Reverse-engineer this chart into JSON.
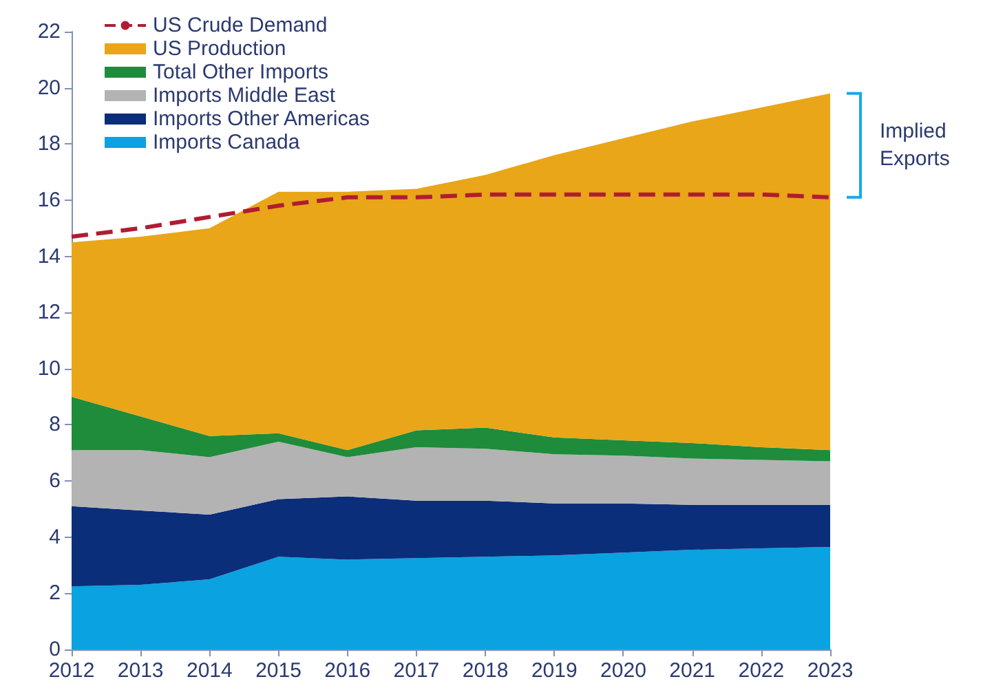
{
  "chart_data": {
    "type": "area",
    "stacked": true,
    "categories": [
      "2012",
      "2013",
      "2014",
      "2015",
      "2016",
      "2017",
      "2018",
      "2019",
      "2020",
      "2021",
      "2022",
      "2023"
    ],
    "series": [
      {
        "name": "Imports Canada",
        "color": "#0aa2e0",
        "values": [
          2.25,
          2.3,
          2.5,
          3.3,
          3.2,
          3.25,
          3.3,
          3.35,
          3.45,
          3.55,
          3.6,
          3.65
        ]
      },
      {
        "name": "Imports Other Americas",
        "color": "#0b2e7a",
        "values": [
          2.85,
          2.65,
          2.3,
          2.05,
          2.25,
          2.05,
          2.0,
          1.85,
          1.75,
          1.6,
          1.55,
          1.5
        ]
      },
      {
        "name": "Imports Middle East",
        "color": "#b3b3b3",
        "values": [
          2.0,
          2.15,
          2.05,
          2.05,
          1.4,
          1.9,
          1.85,
          1.75,
          1.7,
          1.65,
          1.6,
          1.55
        ]
      },
      {
        "name": "Total Other Imports",
        "color": "#1f8c3b",
        "values": [
          1.9,
          1.2,
          0.75,
          0.3,
          0.25,
          0.6,
          0.75,
          0.6,
          0.55,
          0.55,
          0.45,
          0.4
        ]
      },
      {
        "name": "US Production",
        "color": "#e8a618",
        "values": [
          5.5,
          6.4,
          7.4,
          8.6,
          9.2,
          8.6,
          9.0,
          10.05,
          10.75,
          11.45,
          12.1,
          12.7
        ]
      },
      {
        "name": "US Crude Demand",
        "type": "line",
        "color": "#b01c32",
        "line_style": "dashed",
        "values": [
          14.7,
          15.0,
          15.4,
          15.8,
          16.1,
          16.1,
          16.2,
          16.2,
          16.2,
          16.2,
          16.2,
          16.1
        ]
      }
    ],
    "ylim": [
      0,
      22
    ],
    "yticks": [
      0,
      2,
      4,
      6,
      8,
      10,
      12,
      14,
      16,
      18,
      20,
      22
    ],
    "grid": false,
    "legend": "top left",
    "marker": "none",
    "annotations": [
      "Implied Exports"
    ]
  }
}
